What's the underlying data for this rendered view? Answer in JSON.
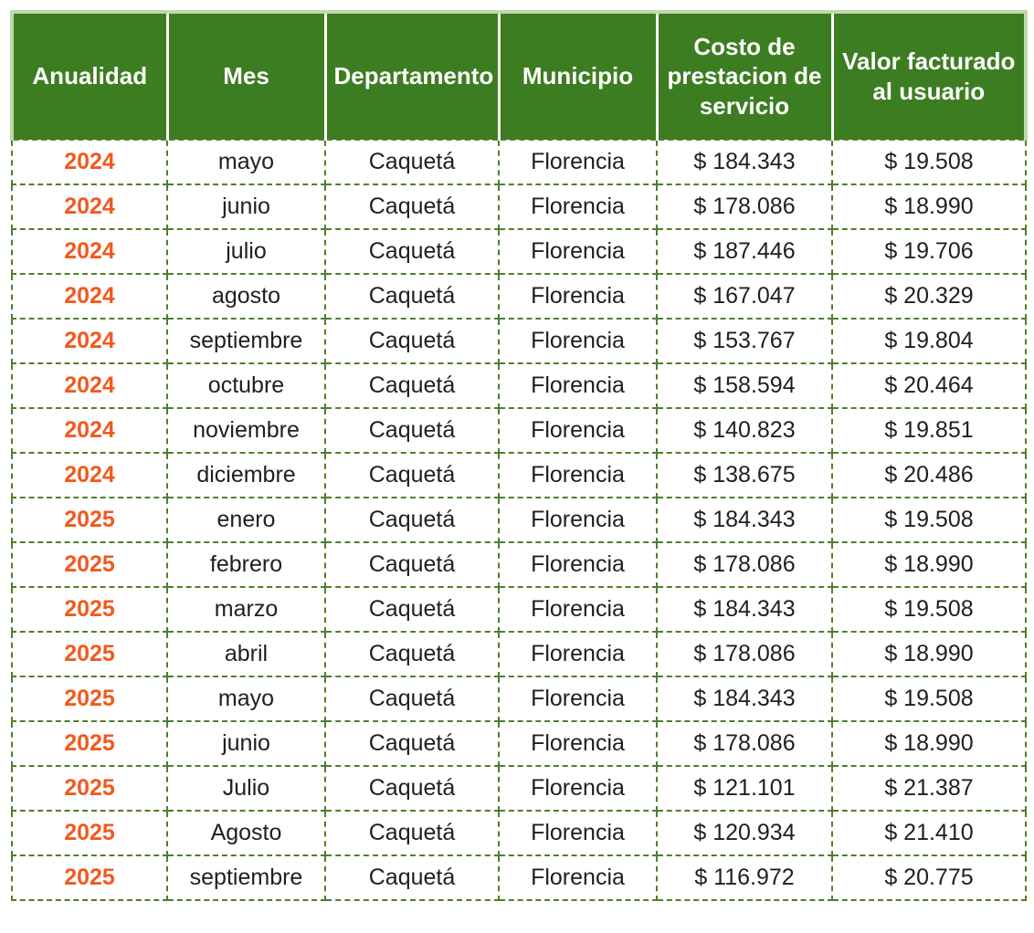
{
  "table": {
    "columns": [
      {
        "key": "anualidad",
        "label": "Anualidad"
      },
      {
        "key": "mes",
        "label": "Mes"
      },
      {
        "key": "departamento",
        "label": "Departamento"
      },
      {
        "key": "municipio",
        "label": "Municipio"
      },
      {
        "key": "costo",
        "label": "Costo de prestacion de servicio"
      },
      {
        "key": "valor",
        "label": "Valor facturado al usuario"
      }
    ],
    "rows": [
      [
        "2024",
        "mayo",
        "Caquetá",
        "Florencia",
        "$ 184.343",
        "$ 19.508"
      ],
      [
        "2024",
        "junio",
        "Caquetá",
        "Florencia",
        "$ 178.086",
        "$ 18.990"
      ],
      [
        "2024",
        "julio",
        "Caquetá",
        "Florencia",
        "$ 187.446",
        "$ 19.706"
      ],
      [
        "2024",
        "agosto",
        "Caquetá",
        "Florencia",
        "$ 167.047",
        "$ 20.329"
      ],
      [
        "2024",
        "septiembre",
        "Caquetá",
        "Florencia",
        "$ 153.767",
        "$ 19.804"
      ],
      [
        "2024",
        "octubre",
        "Caquetá",
        "Florencia",
        "$ 158.594",
        "$ 20.464"
      ],
      [
        "2024",
        "noviembre",
        "Caquetá",
        "Florencia",
        "$ 140.823",
        "$ 19.851"
      ],
      [
        "2024",
        "diciembre",
        "Caquetá",
        "Florencia",
        "$ 138.675",
        "$ 20.486"
      ],
      [
        "2025",
        "enero",
        "Caquetá",
        "Florencia",
        "$ 184.343",
        "$ 19.508"
      ],
      [
        "2025",
        "febrero",
        "Caquetá",
        "Florencia",
        "$ 178.086",
        "$ 18.990"
      ],
      [
        "2025",
        "marzo",
        "Caquetá",
        "Florencia",
        "$ 184.343",
        "$ 19.508"
      ],
      [
        "2025",
        "abril",
        "Caquetá",
        "Florencia",
        "$ 178.086",
        "$ 18.990"
      ],
      [
        "2025",
        "mayo",
        "Caquetá",
        "Florencia",
        "$ 184.343",
        "$ 19.508"
      ],
      [
        "2025",
        "junio",
        "Caquetá",
        "Florencia",
        "$ 178.086",
        "$ 18.990"
      ],
      [
        "2025",
        "Julio",
        "Caquetá",
        "Florencia",
        "$ 121.101",
        "$ 21.387"
      ],
      [
        "2025",
        "Agosto",
        "Caquetá",
        "Florencia",
        "$ 120.934",
        "$ 21.410"
      ],
      [
        "2025",
        "septiembre",
        "Caquetá",
        "Florencia",
        "$ 116.972",
        "$ 20.775"
      ]
    ]
  },
  "chart_data": {
    "type": "table",
    "title": "",
    "columns": [
      "Anualidad",
      "Mes",
      "Departamento",
      "Municipio",
      "Costo de prestacion de servicio",
      "Valor facturado al usuario"
    ],
    "rows": [
      {
        "anualidad": 2024,
        "mes": "mayo",
        "departamento": "Caquetá",
        "municipio": "Florencia",
        "costo_prestacion_servicio": 184343,
        "valor_facturado_usuario": 19508
      },
      {
        "anualidad": 2024,
        "mes": "junio",
        "departamento": "Caquetá",
        "municipio": "Florencia",
        "costo_prestacion_servicio": 178086,
        "valor_facturado_usuario": 18990
      },
      {
        "anualidad": 2024,
        "mes": "julio",
        "departamento": "Caquetá",
        "municipio": "Florencia",
        "costo_prestacion_servicio": 187446,
        "valor_facturado_usuario": 19706
      },
      {
        "anualidad": 2024,
        "mes": "agosto",
        "departamento": "Caquetá",
        "municipio": "Florencia",
        "costo_prestacion_servicio": 167047,
        "valor_facturado_usuario": 20329
      },
      {
        "anualidad": 2024,
        "mes": "septiembre",
        "departamento": "Caquetá",
        "municipio": "Florencia",
        "costo_prestacion_servicio": 153767,
        "valor_facturado_usuario": 19804
      },
      {
        "anualidad": 2024,
        "mes": "octubre",
        "departamento": "Caquetá",
        "municipio": "Florencia",
        "costo_prestacion_servicio": 158594,
        "valor_facturado_usuario": 20464
      },
      {
        "anualidad": 2024,
        "mes": "noviembre",
        "departamento": "Caquetá",
        "municipio": "Florencia",
        "costo_prestacion_servicio": 140823,
        "valor_facturado_usuario": 19851
      },
      {
        "anualidad": 2024,
        "mes": "diciembre",
        "departamento": "Caquetá",
        "municipio": "Florencia",
        "costo_prestacion_servicio": 138675,
        "valor_facturado_usuario": 20486
      },
      {
        "anualidad": 2025,
        "mes": "enero",
        "departamento": "Caquetá",
        "municipio": "Florencia",
        "costo_prestacion_servicio": 184343,
        "valor_facturado_usuario": 19508
      },
      {
        "anualidad": 2025,
        "mes": "febrero",
        "departamento": "Caquetá",
        "municipio": "Florencia",
        "costo_prestacion_servicio": 178086,
        "valor_facturado_usuario": 18990
      },
      {
        "anualidad": 2025,
        "mes": "marzo",
        "departamento": "Caquetá",
        "municipio": "Florencia",
        "costo_prestacion_servicio": 184343,
        "valor_facturado_usuario": 19508
      },
      {
        "anualidad": 2025,
        "mes": "abril",
        "departamento": "Caquetá",
        "municipio": "Florencia",
        "costo_prestacion_servicio": 178086,
        "valor_facturado_usuario": 18990
      },
      {
        "anualidad": 2025,
        "mes": "mayo",
        "departamento": "Caquetá",
        "municipio": "Florencia",
        "costo_prestacion_servicio": 184343,
        "valor_facturado_usuario": 19508
      },
      {
        "anualidad": 2025,
        "mes": "junio",
        "departamento": "Caquetá",
        "municipio": "Florencia",
        "costo_prestacion_servicio": 178086,
        "valor_facturado_usuario": 18990
      },
      {
        "anualidad": 2025,
        "mes": "Julio",
        "departamento": "Caquetá",
        "municipio": "Florencia",
        "costo_prestacion_servicio": 121101,
        "valor_facturado_usuario": 21387
      },
      {
        "anualidad": 2025,
        "mes": "Agosto",
        "departamento": "Caquetá",
        "municipio": "Florencia",
        "costo_prestacion_servicio": 120934,
        "valor_facturado_usuario": 21410
      },
      {
        "anualidad": 2025,
        "mes": "septiembre",
        "departamento": "Caquetá",
        "municipio": "Florencia",
        "costo_prestacion_servicio": 116972,
        "valor_facturado_usuario": 20775
      }
    ],
    "currency_format": "$ #.###",
    "layout_hints": {
      "header_fill": "#3C7D21",
      "header_text": "#FFFFFF",
      "year_color": "#F2591E",
      "grid": "dashed-green"
    }
  },
  "colors": {
    "header_bg": "#3C7D21",
    "header_text": "#FFFFFF",
    "year_text": "#F2591E",
    "body_text": "#1F1F1F",
    "dashed_border": "#507E2A",
    "header_outer_border": "#BFD8AB",
    "header_separator": "#FFFFFF"
  }
}
